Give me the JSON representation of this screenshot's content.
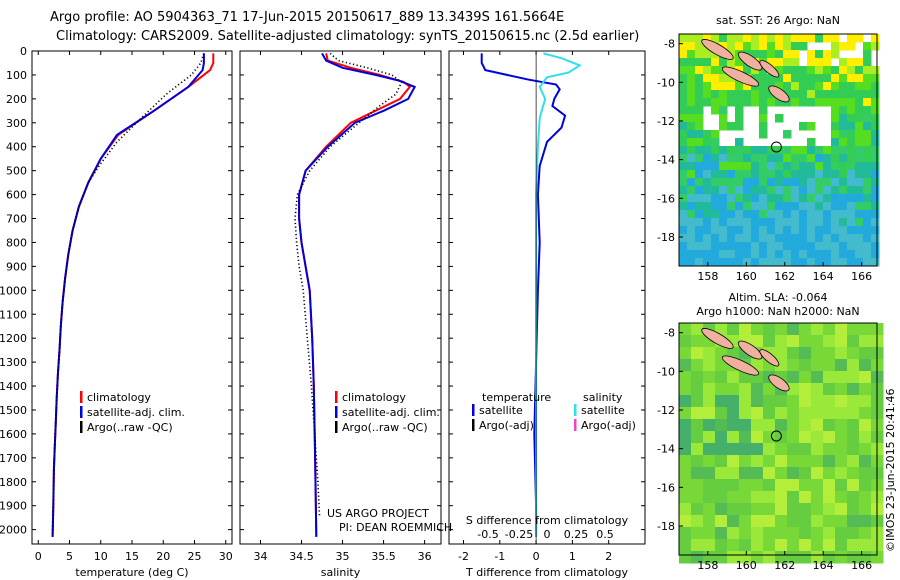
{
  "header": {
    "line1": "Argo profile: AO 5904363_71 17-Jun-2015 20150617_889 13.3439S 161.5664E",
    "line2": "Climatology: CARS2009. Satellite-adjusted climatology: synTS_20150615.nc (2.5d earlier)"
  },
  "colors": {
    "climatology": "#ff0000",
    "satellite": "#0000dd",
    "argo": "#000000",
    "salinity_satellite": "#33ddee",
    "salinity_argo": "#ee44cc"
  },
  "depth_axis": {
    "min": 0,
    "max": 2060,
    "ticks": [
      0,
      100,
      200,
      300,
      400,
      500,
      600,
      700,
      800,
      900,
      1000,
      1100,
      1200,
      1300,
      1400,
      1500,
      1600,
      1700,
      1800,
      1900,
      2000
    ]
  },
  "chart_data": [
    {
      "type": "line",
      "xlabel": "temperature (deg C)",
      "xlim": [
        -1,
        31
      ],
      "xticks": [
        0,
        5,
        10,
        15,
        20,
        25,
        30
      ],
      "ylim": [
        2060,
        0
      ],
      "legend": [
        "climatology",
        "satellite-adj. clim.",
        "Argo(..raw -QC)"
      ],
      "series": [
        {
          "name": "climatology",
          "style": "solid",
          "color": "#ff0000",
          "x": [
            28.0,
            28.0,
            27.5,
            24.0,
            18.5,
            12.8,
            10.0,
            8.0,
            6.5,
            5.5,
            4.8,
            4.3,
            3.9,
            3.6,
            3.4,
            3.15,
            2.95,
            2.8,
            2.65,
            2.5,
            2.4,
            2.3
          ],
          "y": [
            10,
            50,
            80,
            150,
            250,
            350,
            450,
            550,
            650,
            750,
            850,
            950,
            1050,
            1150,
            1250,
            1350,
            1450,
            1550,
            1650,
            1750,
            1900,
            2030
          ]
        },
        {
          "name": "satellite-adj. clim.",
          "style": "solid",
          "color": "#0000dd",
          "x": [
            26.5,
            26.5,
            26.3,
            24.0,
            18.5,
            12.6,
            10.0,
            8.0,
            6.5,
            5.5,
            4.8,
            4.3,
            3.9,
            3.6,
            3.4,
            3.15,
            2.95,
            2.8,
            2.65,
            2.5,
            2.4,
            2.3
          ],
          "y": [
            10,
            50,
            80,
            150,
            250,
            350,
            450,
            550,
            650,
            750,
            850,
            950,
            1050,
            1150,
            1250,
            1350,
            1450,
            1550,
            1650,
            1750,
            1900,
            2030
          ]
        },
        {
          "name": "Argo(..raw -QC)",
          "style": "dotted",
          "color": "#000000",
          "x": [
            26.5,
            26.0,
            24.5,
            20.5,
            16.5,
            12.6,
            10.0,
            8.0,
            6.5,
            5.5,
            4.8,
            4.3,
            3.9,
            3.6,
            3.4,
            3.15,
            2.95,
            2.8,
            2.65,
            2.5,
            2.4,
            2.3
          ],
          "y": [
            10,
            50,
            100,
            180,
            280,
            380,
            470,
            550,
            650,
            750,
            850,
            950,
            1050,
            1150,
            1250,
            1350,
            1450,
            1550,
            1650,
            1750,
            1900,
            2030
          ]
        }
      ]
    },
    {
      "type": "line",
      "xlabel": "salinity",
      "xlim": [
        33.75,
        36.2
      ],
      "xticks": [
        34,
        34.5,
        35,
        35.5,
        36
      ],
      "ylim": [
        2060,
        0
      ],
      "legend": [
        "climatology",
        "satellite-adj. clim.",
        "Argo(..raw -QC)"
      ],
      "credit": [
        "US ARGO PROJECT",
        "PI: DEAN ROEMMICH"
      ],
      "series": [
        {
          "name": "climatology",
          "style": "solid",
          "color": "#ff0000",
          "x": [
            34.8,
            34.82,
            35.1,
            35.45,
            35.75,
            35.82,
            35.7,
            35.4,
            35.1,
            34.8,
            34.55,
            34.47,
            34.47,
            34.5,
            34.55,
            34.6,
            34.63,
            34.65,
            34.66,
            34.67,
            34.68
          ],
          "y": [
            10,
            40,
            70,
            100,
            130,
            150,
            200,
            250,
            300,
            400,
            500,
            600,
            700,
            800,
            900,
            1000,
            1200,
            1400,
            1600,
            1800,
            2030
          ]
        },
        {
          "name": "satellite-adj. clim.",
          "style": "solid",
          "color": "#0000dd",
          "x": [
            34.75,
            34.8,
            35.0,
            35.4,
            35.7,
            35.88,
            35.8,
            35.5,
            35.15,
            34.82,
            34.55,
            34.47,
            34.47,
            34.5,
            34.55,
            34.6,
            34.63,
            34.65,
            34.66,
            34.67,
            34.68
          ],
          "y": [
            10,
            40,
            70,
            100,
            125,
            150,
            200,
            250,
            300,
            400,
            500,
            600,
            700,
            800,
            900,
            1000,
            1200,
            1400,
            1600,
            1800,
            2030
          ]
        },
        {
          "name": "Argo(..raw -QC)",
          "style": "dotted",
          "color": "#000000",
          "x": [
            34.85,
            34.95,
            35.3,
            35.6,
            35.72,
            35.65,
            35.45,
            35.2,
            34.85,
            34.6,
            34.45,
            34.42,
            34.44,
            34.47,
            34.52,
            34.57,
            34.62,
            34.66,
            34.7,
            34.72
          ],
          "y": [
            10,
            40,
            70,
            100,
            130,
            180,
            230,
            300,
            400,
            500,
            600,
            700,
            800,
            900,
            1000,
            1200,
            1400,
            1600,
            1800,
            1950
          ]
        }
      ]
    },
    {
      "type": "line",
      "xlabel": "T difference from climatology",
      "x2label": "S difference from climatology",
      "xlim": [
        -2.4,
        3.0
      ],
      "xticks": [
        -2,
        -1,
        0,
        1,
        2
      ],
      "x2ticks": [
        -0.5,
        -0.25,
        0,
        0.25,
        0.5
      ],
      "x2tick_labels": [
        "-0.5",
        "-0.25",
        "0",
        "0.25",
        "0.5"
      ],
      "ylim": [
        2060,
        0
      ],
      "legend_heading_temperature": "temperature",
      "legend_heading_salinity": "salinity",
      "legend_temperature": [
        "satellite",
        "Argo(-adj)"
      ],
      "legend_salinity": [
        "satellite",
        "Argo(-adj)"
      ],
      "series": [
        {
          "name": "satellite",
          "style": "solid",
          "color": "#0000dd",
          "x": [
            -1.5,
            -1.5,
            -1.4,
            -0.2,
            0.55,
            0.65,
            0.5,
            0.45,
            0.8,
            0.7,
            0.3,
            0.1,
            0.05,
            0.1,
            0.05,
            0.0,
            -0.05,
            0.0,
            0.0
          ],
          "y": [
            10,
            50,
            80,
            120,
            140,
            160,
            200,
            230,
            270,
            320,
            380,
            480,
            600,
            800,
            1000,
            1300,
            1600,
            1900,
            2030
          ]
        },
        {
          "name": "satellite",
          "style": "solid",
          "color": "#33ddee",
          "x": [
            0.2,
            0.7,
            1.2,
            0.9,
            0.3,
            0.1,
            0.25,
            0.1,
            0.05,
            0.0,
            0.0,
            0.0,
            0.0,
            0.0
          ],
          "y": [
            10,
            30,
            60,
            90,
            110,
            150,
            200,
            280,
            400,
            600,
            900,
            1300,
            1700,
            2030
          ]
        }
      ]
    },
    {
      "type": "heatmap",
      "title": "sat. SST: 26 Argo: NaN",
      "xticks": [
        158,
        160,
        162,
        164,
        166
      ],
      "yticks": [
        -8,
        -10,
        -12,
        -14,
        -16,
        -18
      ],
      "xlim": [
        156.5,
        166.8
      ],
      "ylim": [
        -19.5,
        -7.5
      ],
      "marker": {
        "lon": 161.5664,
        "lat": -13.3439
      }
    },
    {
      "type": "heatmap",
      "title_line1": "Altim. SLA: -0.064",
      "title_line2": "Argo h1000: NaN h2000: NaN",
      "xticks": [
        158,
        160,
        162,
        164,
        166
      ],
      "yticks": [
        -8,
        -10,
        -12,
        -14,
        -16,
        -18
      ],
      "xlim": [
        156.5,
        166.8
      ],
      "ylim": [
        -19.5,
        -7.5
      ],
      "marker": {
        "lon": 161.5664,
        "lat": -13.3439
      }
    }
  ],
  "side_credit": "©IMOS 23-Jun-2015 20:41:46"
}
